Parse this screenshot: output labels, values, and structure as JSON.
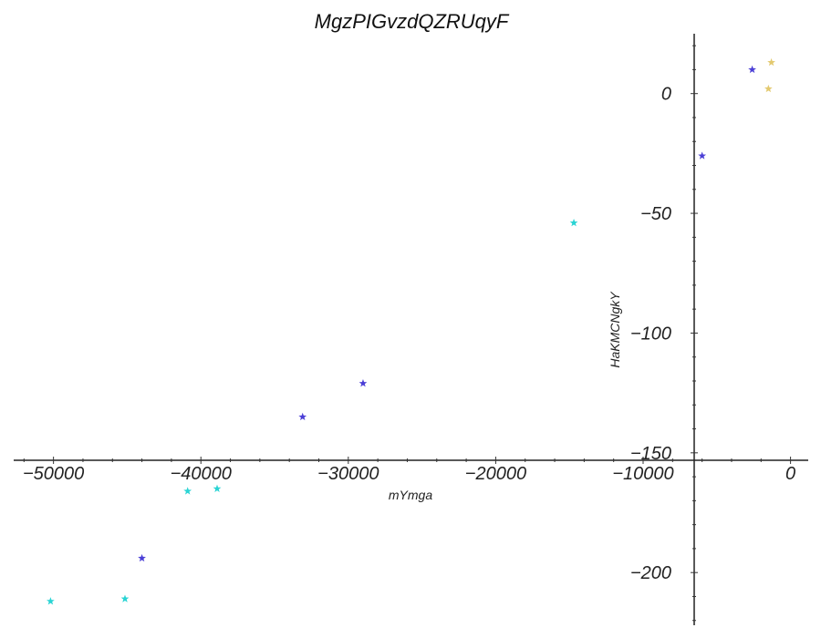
{
  "chart_data": {
    "type": "scatter",
    "title": "MgzPIGvzdQZRUqyF",
    "xlabel": "mYmga",
    "ylabel": "HaKMCNgkY",
    "xlim": [
      -52700,
      1200
    ],
    "ylim": [
      -222,
      25
    ],
    "x_ticks": [
      -50000,
      -40000,
      -30000,
      -20000,
      -10000,
      0
    ],
    "x_tick_labels": [
      "−50000",
      "−40000",
      "−30000",
      "−20000",
      "−10000",
      "0"
    ],
    "y_ticks": [
      0,
      -50,
      -100,
      -150,
      -200
    ],
    "y_tick_labels": [
      "0",
      "−50",
      "−100",
      "−150",
      "−200"
    ],
    "marker": "star",
    "grid": false,
    "series": [
      {
        "color": "#2ad4d4",
        "points": [
          {
            "x": -50200,
            "y": -212
          },
          {
            "x": -45150,
            "y": -211
          },
          {
            "x": -40900,
            "y": -166
          },
          {
            "x": -38900,
            "y": -165
          },
          {
            "x": -14700,
            "y": -54
          }
        ]
      },
      {
        "color": "#4b3fd6",
        "points": [
          {
            "x": -44000,
            "y": -194
          },
          {
            "x": -33100,
            "y": -135
          },
          {
            "x": -29000,
            "y": -121
          },
          {
            "x": -6000,
            "y": -26
          },
          {
            "x": -2600,
            "y": 10
          }
        ]
      },
      {
        "color": "#e3c96f",
        "points": [
          {
            "x": -1300,
            "y": 13
          },
          {
            "x": -1500,
            "y": 2
          }
        ]
      }
    ]
  }
}
